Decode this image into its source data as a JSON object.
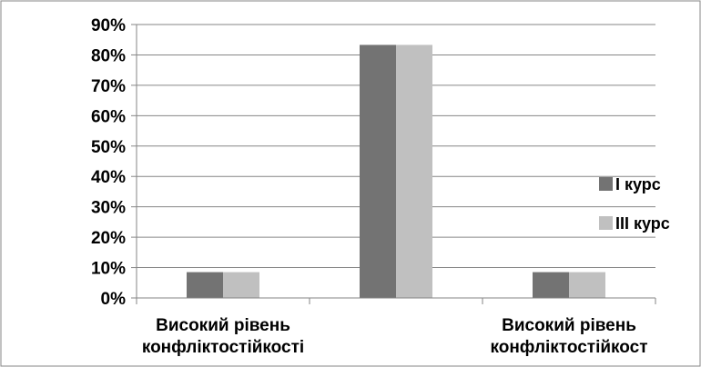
{
  "chart_data": {
    "type": "bar",
    "title": "",
    "xlabel": "",
    "ylabel": "",
    "categories": [
      [
        "Високий рівень",
        "конфліктостійкості"
      ],
      [
        "",
        ""
      ],
      [
        "Високий рівень",
        "конфліктостійкост"
      ]
    ],
    "series": [
      {
        "name": "I курс",
        "values": [
          8.5,
          83.3,
          8.5
        ],
        "color": "#737373"
      },
      {
        "name": "III курс",
        "values": [
          8.5,
          83.3,
          8.5
        ],
        "color": "#c0c0c0"
      }
    ],
    "ylim": [
      0,
      90
    ],
    "yticks": [
      0,
      10,
      20,
      30,
      40,
      50,
      60,
      70,
      80,
      90
    ],
    "ytick_labels": [
      "0%",
      "10%",
      "20%",
      "30%",
      "40%",
      "50%",
      "60%",
      "70%",
      "80%",
      "90%"
    ],
    "grid": true,
    "legend_position": "right",
    "colors": {
      "grid": "#868686",
      "axis": "#868686",
      "frame": "#868686",
      "background": "#ffffff"
    }
  }
}
